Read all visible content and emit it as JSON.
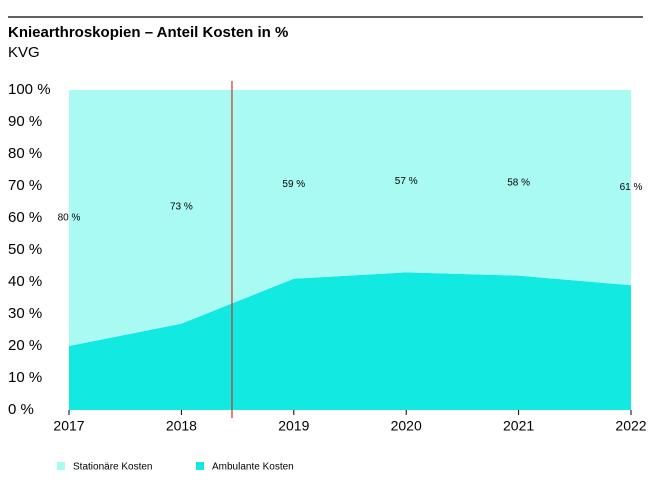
{
  "chart_data": {
    "type": "area",
    "title": "Kniearthroskopien – Anteil Kosten in %",
    "subtitle": "KVG",
    "x": [
      2017,
      2018,
      2019,
      2020,
      2021,
      2022
    ],
    "xlim": [
      2017,
      2022
    ],
    "xticks": [
      2017,
      2018,
      2019,
      2020,
      2021,
      2022
    ],
    "ylim": [
      0,
      100
    ],
    "yticks": [
      {
        "value": 0,
        "label": "0 %"
      },
      {
        "value": 10,
        "label": "10 %"
      },
      {
        "value": 20,
        "label": "20 %"
      },
      {
        "value": 30,
        "label": "30 %"
      },
      {
        "value": 40,
        "label": "40 %"
      },
      {
        "value": 50,
        "label": "50 %"
      },
      {
        "value": 60,
        "label": "60 %"
      },
      {
        "value": 70,
        "label": "70 %"
      },
      {
        "value": 80,
        "label": "80 %"
      },
      {
        "value": 90,
        "label": "90 %"
      },
      {
        "value": 100,
        "label": "100 %"
      }
    ],
    "stacked": true,
    "series": [
      {
        "name": "Stationäre Kosten",
        "color": "#aafaf4",
        "values": [
          80,
          73,
          59,
          57,
          58,
          61
        ],
        "value_labels": [
          "80 %",
          "73 %",
          "59 %",
          "57 %",
          "58 %",
          "61 %"
        ]
      },
      {
        "name": "Ambulante Kosten",
        "color": "#12e9e1",
        "values": [
          20,
          27,
          41,
          43,
          42,
          39
        ]
      }
    ],
    "reference_line": {
      "x": 2018.45,
      "color": "#c0392b"
    }
  }
}
